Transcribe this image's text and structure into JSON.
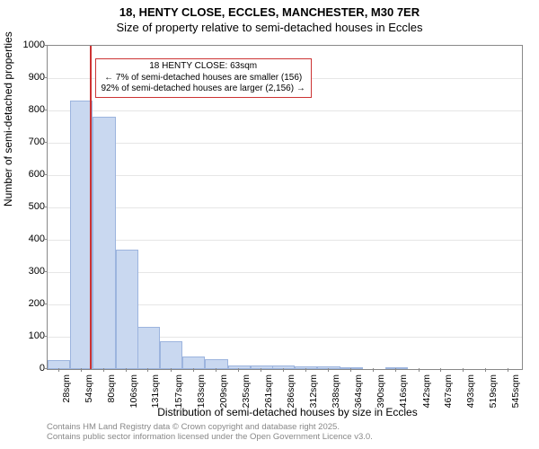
{
  "title": {
    "line1": "18, HENTY CLOSE, ECCLES, MANCHESTER, M30 7ER",
    "line2": "Size of property relative to semi-detached houses in Eccles",
    "fontsize": 13
  },
  "chart": {
    "type": "histogram",
    "ylabel": "Number of semi-detached properties",
    "xlabel": "Distribution of semi-detached houses by size in Eccles",
    "label_fontsize": 12,
    "tick_fontsize": 11,
    "xlim": [
      15,
      560
    ],
    "ylim": [
      0,
      1000
    ],
    "ytick_step": 100,
    "yticks": [
      0,
      100,
      200,
      300,
      400,
      500,
      600,
      700,
      800,
      900,
      1000
    ],
    "x_categories": [
      "28sqm",
      "54sqm",
      "80sqm",
      "106sqm",
      "131sqm",
      "157sqm",
      "183sqm",
      "209sqm",
      "235sqm",
      "261sqm",
      "286sqm",
      "312sqm",
      "338sqm",
      "364sqm",
      "390sqm",
      "416sqm",
      "442sqm",
      "467sqm",
      "493sqm",
      "519sqm",
      "545sqm"
    ],
    "x_values": [
      28,
      54,
      80,
      106,
      131,
      157,
      183,
      209,
      235,
      261,
      286,
      312,
      338,
      364,
      390,
      416,
      442,
      467,
      493,
      519,
      545
    ],
    "bar_values": [
      28,
      830,
      780,
      370,
      130,
      85,
      40,
      30,
      12,
      10,
      10,
      8,
      8,
      3,
      0,
      3,
      0,
      0,
      0,
      0,
      0
    ],
    "bar_color": "#c9d8f0",
    "bar_border_color": "#9cb4de",
    "background_color": "#ffffff",
    "grid_color": "#e6e6e6",
    "axis_color": "#888888",
    "marker": {
      "value": 63,
      "color": "#cc3333",
      "label1": "18 HENTY CLOSE: 63sqm",
      "label2": "← 7% of semi-detached houses are smaller (156)",
      "label3": "92% of semi-detached houses are larger (2,156) →"
    }
  },
  "footer": {
    "line1": "Contains HM Land Registry data © Crown copyright and database right 2025.",
    "line2": "Contains public sector information licensed under the Open Government Licence v3.0.",
    "color": "#888888",
    "fontsize": 9.5
  }
}
